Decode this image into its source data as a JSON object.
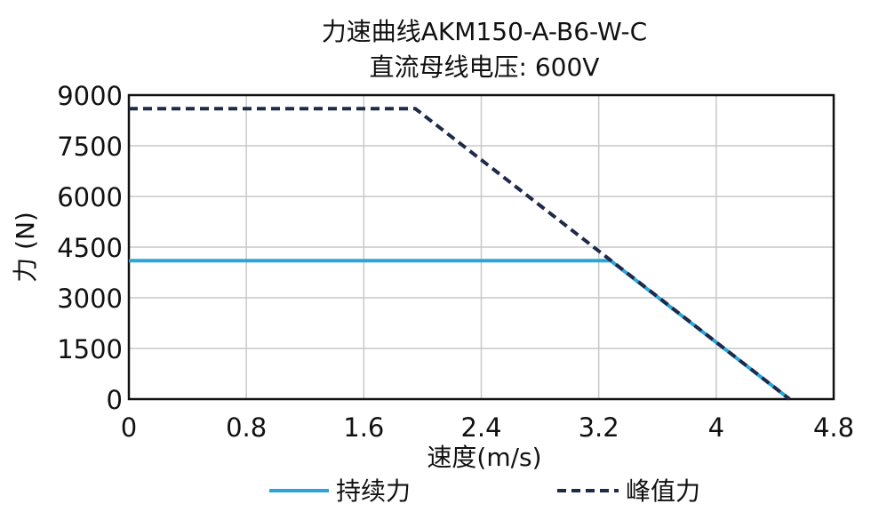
{
  "chart_data": {
    "type": "line",
    "title": "力速曲线AKM150-A-B6-W-C",
    "subtitle": "直流母线电压: 600V",
    "xlabel": "速度(m/s)",
    "ylabel": "力 (N)",
    "xlim": [
      0,
      4.8
    ],
    "ylim": [
      0,
      9000
    ],
    "xticks": [
      "0",
      "0.8",
      "1.6",
      "2.4",
      "3.2",
      "4",
      "4.8"
    ],
    "yticks": [
      "0",
      "1500",
      "3000",
      "4500",
      "6000",
      "7500",
      "9000"
    ],
    "grid": true,
    "legend_position": "bottom",
    "series": [
      {
        "name": "持续力",
        "color": "#2aa5d8",
        "style": "solid",
        "points": [
          [
            0,
            4100
          ],
          [
            3.28,
            4100
          ],
          [
            4.5,
            0
          ]
        ]
      },
      {
        "name": "峰值力",
        "color": "#1f2a4a",
        "style": "dashed",
        "points": [
          [
            0,
            8600
          ],
          [
            1.95,
            8600
          ],
          [
            4.5,
            0
          ]
        ]
      }
    ]
  }
}
